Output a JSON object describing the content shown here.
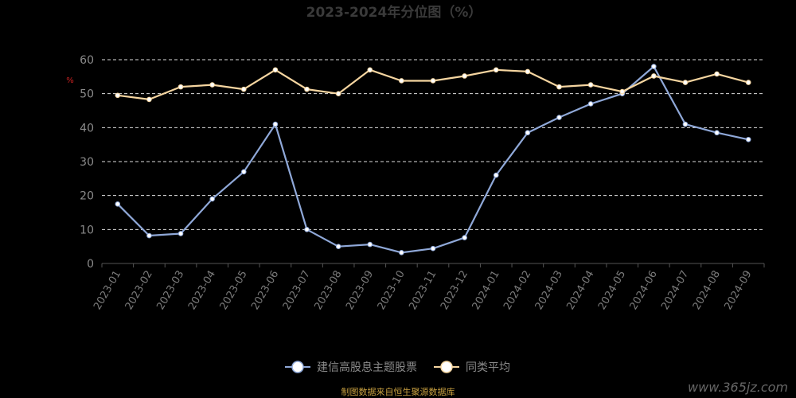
{
  "chart_data": {
    "type": "line",
    "title": "2023-2024年分位图（%）",
    "ylabel": "%",
    "ylim": [
      0,
      60
    ],
    "yticks": [
      0,
      10,
      20,
      30,
      40,
      50,
      60
    ],
    "grid": true,
    "legend_position": "bottom",
    "categories": [
      "2023-01",
      "2023-02",
      "2023-03",
      "2023-04",
      "2023-05",
      "2023-06",
      "2023-07",
      "2023-08",
      "2023-09",
      "2023-10",
      "2023-11",
      "2023-12",
      "2024-01",
      "2024-02",
      "2024-03",
      "2024-04",
      "2024-05",
      "2024-06",
      "2024-07",
      "2024-08",
      "2024-09"
    ],
    "series": [
      {
        "name": "建信高股息主题股票",
        "color": "#8fa8d8",
        "values": [
          17.5,
          8.2,
          8.8,
          19,
          27,
          41,
          10,
          5,
          5.6,
          3.2,
          4.4,
          7.6,
          26,
          38.5,
          43,
          47,
          50,
          58,
          41,
          38.5,
          36.5
        ]
      },
      {
        "name": "同类平均",
        "color": "#f5d5a0",
        "values": [
          49.5,
          48.3,
          52,
          52.6,
          51.3,
          57,
          51.3,
          50,
          57,
          53.8,
          53.8,
          55.2,
          57,
          56.5,
          52,
          52.6,
          50.6,
          55.2,
          53.3,
          55.8,
          53.3
        ]
      }
    ]
  },
  "source_text": "制图数据来自恒生聚源数据库",
  "watermark_text": "www.365jz.com"
}
